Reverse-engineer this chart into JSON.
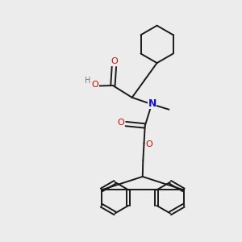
{
  "bg_color": "#ececec",
  "bond_color": "#1a1a1a",
  "oxygen_color": "#cc1100",
  "nitrogen_color": "#1111cc",
  "hydrogen_color": "#777777",
  "line_width": 1.4,
  "figsize": [
    3.0,
    3.0
  ],
  "dpi": 100,
  "xlim": [
    0,
    10
  ],
  "ylim": [
    0,
    10
  ]
}
